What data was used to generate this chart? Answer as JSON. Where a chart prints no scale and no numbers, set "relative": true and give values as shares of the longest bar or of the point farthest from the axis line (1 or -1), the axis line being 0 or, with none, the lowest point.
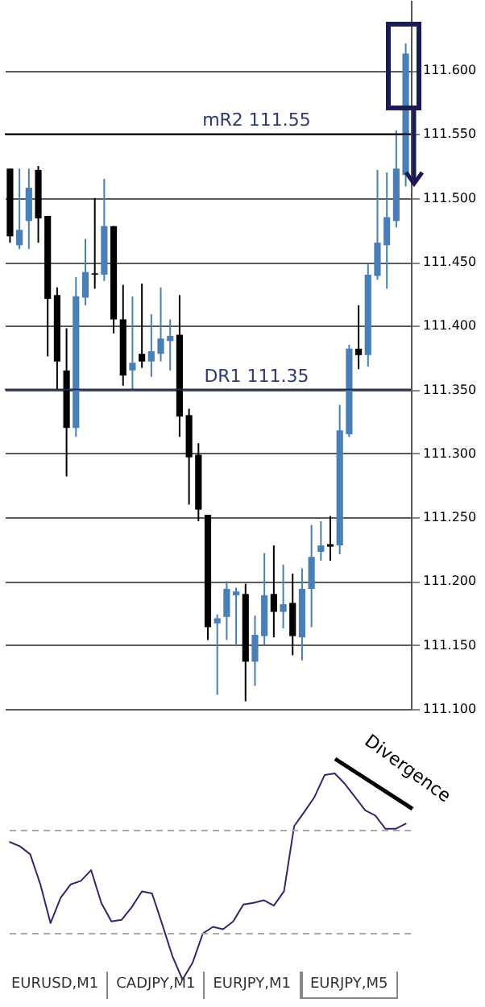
{
  "chart_data": [
    {
      "type": "candlestick",
      "categories": [
        null,
        null,
        null,
        null,
        null,
        null,
        null,
        null,
        null,
        null,
        null,
        null,
        null,
        null,
        null,
        null,
        null,
        null,
        null,
        null,
        null,
        null,
        null,
        null,
        null,
        null,
        null,
        null,
        null,
        null,
        null,
        null,
        null,
        null,
        null,
        null,
        null,
        null,
        null,
        null,
        null,
        null,
        null
      ],
      "ohlc": [
        [
          111.523,
          111.523,
          111.465,
          111.47
        ],
        [
          111.463,
          111.523,
          111.46,
          111.475
        ],
        [
          111.482,
          111.523,
          111.46,
          111.508
        ],
        [
          111.522,
          111.525,
          111.465,
          111.484
        ],
        [
          111.486,
          111.486,
          111.376,
          111.421
        ],
        [
          111.424,
          111.43,
          111.35,
          111.372
        ],
        [
          111.365,
          111.398,
          111.282,
          111.32
        ],
        [
          111.32,
          111.438,
          111.313,
          111.423
        ],
        [
          111.422,
          111.468,
          111.416,
          111.442
        ],
        [
          111.441,
          111.5,
          111.429,
          111.44
        ],
        [
          111.44,
          111.515,
          111.435,
          111.478
        ],
        [
          111.478,
          111.478,
          111.394,
          111.405
        ],
        [
          111.405,
          111.432,
          111.353,
          111.361
        ],
        [
          111.365,
          111.423,
          111.349,
          111.371
        ],
        [
          111.378,
          111.433,
          111.367,
          111.372
        ],
        [
          111.372,
          111.409,
          111.36,
          111.38
        ],
        [
          111.378,
          111.43,
          111.372,
          111.39
        ],
        [
          111.388,
          111.405,
          111.365,
          111.392
        ],
        [
          111.393,
          111.424,
          111.313,
          111.329
        ],
        [
          111.33,
          111.335,
          111.26,
          111.297
        ],
        [
          111.299,
          111.308,
          111.247,
          111.256
        ],
        [
          111.252,
          111.252,
          111.154,
          111.164
        ],
        [
          111.167,
          111.174,
          111.111,
          111.171
        ],
        [
          111.172,
          111.2,
          111.154,
          111.194
        ],
        [
          111.189,
          111.195,
          111.149,
          111.192
        ],
        [
          111.19,
          111.198,
          111.106,
          111.137
        ],
        [
          111.137,
          111.173,
          111.118,
          111.158
        ],
        [
          111.157,
          111.222,
          111.15,
          111.189
        ],
        [
          111.19,
          111.228,
          111.156,
          111.176
        ],
        [
          111.176,
          111.213,
          111.163,
          111.182
        ],
        [
          111.183,
          111.206,
          111.142,
          111.157
        ],
        [
          111.156,
          111.21,
          111.138,
          111.194
        ],
        [
          111.194,
          111.244,
          111.164,
          111.219
        ],
        [
          111.223,
          111.247,
          111.216,
          111.228
        ],
        [
          111.229,
          111.251,
          111.216,
          111.227
        ],
        [
          111.228,
          111.338,
          111.221,
          111.318
        ],
        [
          111.315,
          111.385,
          111.313,
          111.382
        ],
        [
          111.382,
          111.416,
          111.366,
          111.377
        ],
        [
          111.377,
          111.448,
          111.368,
          111.44
        ],
        [
          111.439,
          111.522,
          111.436,
          111.465
        ],
        [
          111.463,
          111.52,
          111.429,
          111.485
        ],
        [
          111.482,
          111.553,
          111.477,
          111.523
        ],
        [
          111.518,
          111.621,
          111.509,
          111.613
        ]
      ],
      "colors": [
        "#000000",
        "#4a7fb5",
        "#4a7fb5",
        "#000000",
        "#000000",
        "#000000",
        "#000000",
        "#4a7fb5",
        "#4a7fb5",
        "#000000",
        "#4a7fb5",
        "#000000",
        "#000000",
        "#4a7fb5",
        "#000000",
        "#4a7fb5",
        "#4a7fb5",
        "#4a7fb5",
        "#000000",
        "#000000",
        "#000000",
        "#000000",
        "#4a7fb5",
        "#4a7fb5",
        "#4a7fb5",
        "#000000",
        "#4a7fb5",
        "#4a7fb5",
        "#000000",
        "#4a7fb5",
        "#000000",
        "#4a7fb5",
        "#4a7fb5",
        "#4a7fb5",
        "#000000",
        "#4a7fb5",
        "#4a7fb5",
        "#000000",
        "#4a7fb5",
        "#4a7fb5",
        "#4a7fb5",
        "#4a7fb5",
        "#4a7fb5"
      ],
      "ylim": [
        111.1,
        111.655
      ],
      "yticks": [
        {
          "value": 111.1,
          "label": "111.100"
        },
        {
          "value": 111.15,
          "label": "111.150"
        },
        {
          "value": 111.2,
          "label": "111.200"
        },
        {
          "value": 111.25,
          "label": "111.250"
        },
        {
          "value": 111.3,
          "label": "111.300"
        },
        {
          "value": 111.35,
          "label": "111.350"
        },
        {
          "value": 111.4,
          "label": "111.400"
        },
        {
          "value": 111.45,
          "label": "111.450"
        },
        {
          "value": 111.5,
          "label": "111.500"
        },
        {
          "value": 111.55,
          "label": "111.550"
        },
        {
          "value": 111.6,
          "label": "111.600"
        }
      ],
      "grid": "y",
      "tick_labels": "y",
      "ref_lines": [
        {
          "axis": "y",
          "value": 111.55,
          "label": "mR2  111.55",
          "color": "#000000"
        },
        {
          "axis": "y",
          "value": 111.35,
          "label": "DR1  111.35",
          "color": "#1f2a5c"
        }
      ]
    },
    {
      "type": "line",
      "relative": true,
      "tick_labels": false,
      "categories": [
        null,
        null,
        null,
        null,
        null,
        null,
        null,
        null,
        null,
        null,
        null,
        null,
        null,
        null,
        null,
        null,
        null,
        null,
        null,
        null,
        null,
        null,
        null,
        null,
        null,
        null,
        null,
        null,
        null,
        null,
        null,
        null,
        null,
        null,
        null,
        null,
        null,
        null,
        null,
        null
      ],
      "series": [
        {
          "color": "#2b2b6b",
          "values": [
            0.667,
            0.646,
            0.608,
            0.462,
            0.274,
            0.397,
            0.462,
            0.479,
            0.531,
            0.372,
            0.282,
            0.29,
            0.351,
            0.428,
            0.418,
            0.269,
            0.115,
            0,
            0.082,
            0.223,
            0.256,
            0.244,
            0.282,
            0.364,
            0.372,
            0.385,
            0.359,
            0.428,
            0.744,
            0.813,
            0.885,
            0.992,
            1,
            0.949,
            0.885,
            0.821,
            0.795,
            0.731,
            0.731,
            0.756
          ]
        }
      ],
      "ref_lines": [
        {
          "axis": "y",
          "value": 0.723,
          "color": "#aaaaaa",
          "line_style": "dashed"
        },
        {
          "axis": "y",
          "value": 0.223,
          "color": "#aaaaaa",
          "line_style": "dashed"
        }
      ],
      "annotations": [
        "Divergence",
        "EURUSD,M1",
        "CADJPY,M1",
        "EURJPY,M1",
        "EURJPY,M5"
      ]
    }
  ]
}
